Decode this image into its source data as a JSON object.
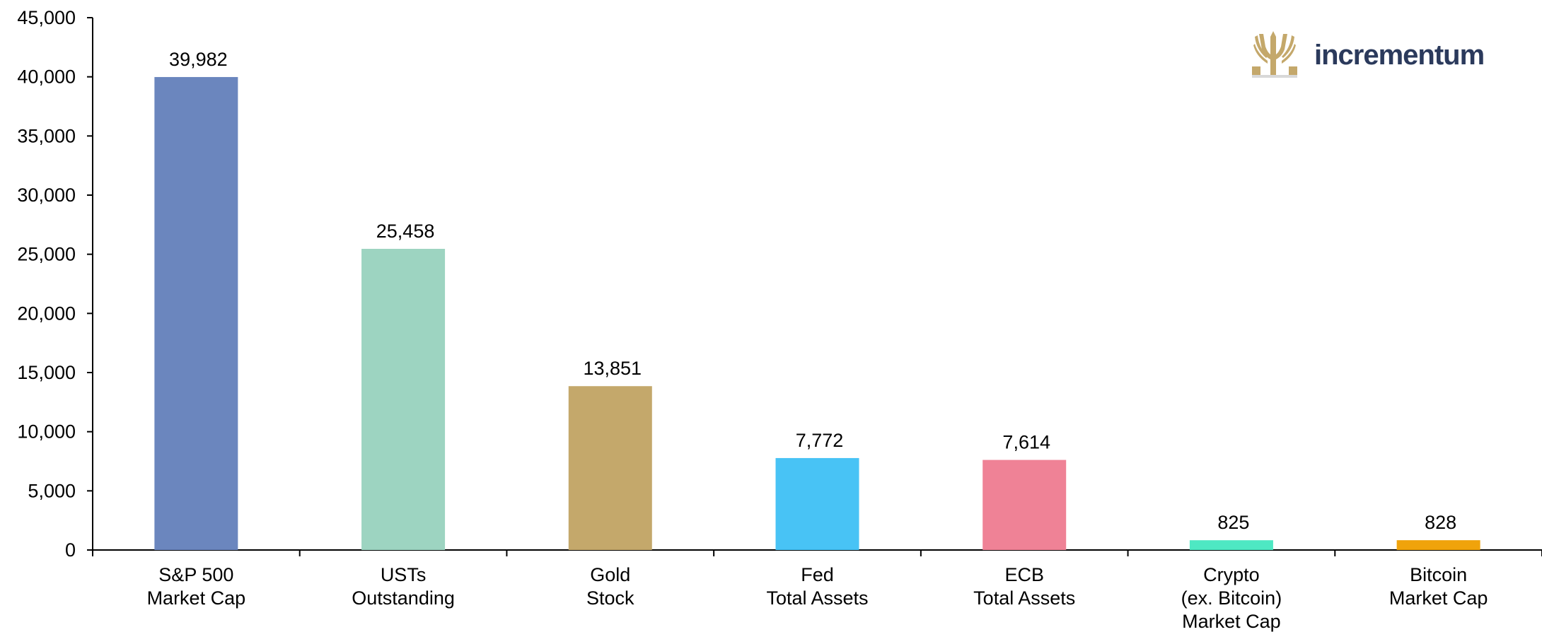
{
  "chart_data": {
    "type": "bar",
    "categories": [
      [
        "S&P 500",
        "Market Cap"
      ],
      [
        "USTs",
        "Outstanding"
      ],
      [
        "Gold",
        "Stock"
      ],
      [
        "Fed",
        "Total Assets"
      ],
      [
        "ECB",
        "Total Assets"
      ],
      [
        "Crypto",
        "(ex. Bitcoin)",
        "Market Cap"
      ],
      [
        "Bitcoin",
        "Market Cap"
      ]
    ],
    "values": [
      39982,
      25458,
      13851,
      7772,
      7614,
      825,
      828
    ],
    "data_labels": [
      "39,982",
      "25,458",
      "13,851",
      "7,772",
      "7,614",
      "825",
      "828"
    ],
    "colors": [
      "#6b86be",
      "#9dd4c1",
      "#c4a86b",
      "#48c3f5",
      "#ef8296",
      "#4ee8c3",
      "#f0a30b"
    ],
    "ylim": [
      0,
      45000
    ],
    "yticks": [
      0,
      5000,
      10000,
      15000,
      20000,
      25000,
      30000,
      35000,
      40000,
      45000
    ],
    "ytick_labels": [
      "0",
      "5,000",
      "10,000",
      "15,000",
      "20,000",
      "25,000",
      "30,000",
      "35,000",
      "40,000",
      "45,000"
    ],
    "grid": false,
    "title": "",
    "xlabel": "",
    "ylabel": ""
  },
  "logo": {
    "text": "incrementum",
    "icon": "tree-icon",
    "text_color": "#2b3a5c",
    "icon_color": "#c4a86b"
  }
}
